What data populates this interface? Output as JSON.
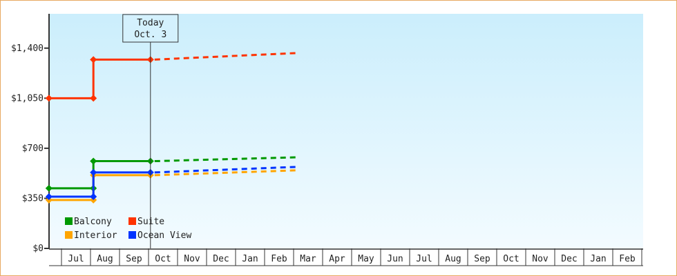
{
  "chart_data": {
    "type": "line",
    "title": "",
    "xlabel": "",
    "ylabel": "",
    "ylim": [
      0,
      1640
    ],
    "y_ticks": [
      "$0",
      "$350",
      "$700",
      "$1,050",
      "$1,400"
    ],
    "y_tick_values": [
      0,
      350,
      700,
      1050,
      1400
    ],
    "x_tick_labels": [
      "Jul",
      "Aug",
      "Sep",
      "Oct",
      "Nov",
      "Dec",
      "Jan",
      "Feb",
      "Mar",
      "Apr",
      "May",
      "Jun",
      "Jul",
      "Aug",
      "Sep",
      "Oct",
      "Nov",
      "Dec",
      "Jan",
      "Feb"
    ],
    "grid": false,
    "legend_placement": "bottom-left",
    "today_marker": {
      "line1": "Today",
      "line2": "Oct. 3",
      "date": "Oct 3"
    },
    "series": [
      {
        "name": "Balcony",
        "color": "#009900",
        "x": [
          "Jun 18",
          "Aug 4",
          "Oct 3"
        ],
        "values": [
          420,
          610,
          610
        ],
        "projected": {
          "x": [
            "Oct 3",
            "Mar 5"
          ],
          "values": [
            610,
            637
          ]
        }
      },
      {
        "name": "Suite",
        "color": "#ff3300",
        "x": [
          "Jun 18",
          "Aug 4",
          "Oct 3"
        ],
        "values": [
          1050,
          1320,
          1320
        ],
        "projected": {
          "x": [
            "Oct 3",
            "Mar 5"
          ],
          "values": [
            1320,
            1366
          ]
        }
      },
      {
        "name": "Interior",
        "color": "#ffa500",
        "x": [
          "Jun 18",
          "Aug 4",
          "Oct 3"
        ],
        "values": [
          338,
          512,
          512
        ],
        "projected": {
          "x": [
            "Oct 3",
            "Mar 5"
          ],
          "values": [
            512,
            546
          ]
        }
      },
      {
        "name": "Ocean View",
        "color": "#0033ff",
        "x": [
          "Jun 18",
          "Aug 4",
          "Oct 3"
        ],
        "values": [
          362,
          531,
          531
        ],
        "projected": {
          "x": [
            "Oct 3",
            "Mar 5"
          ],
          "values": [
            531,
            570
          ]
        }
      }
    ]
  }
}
